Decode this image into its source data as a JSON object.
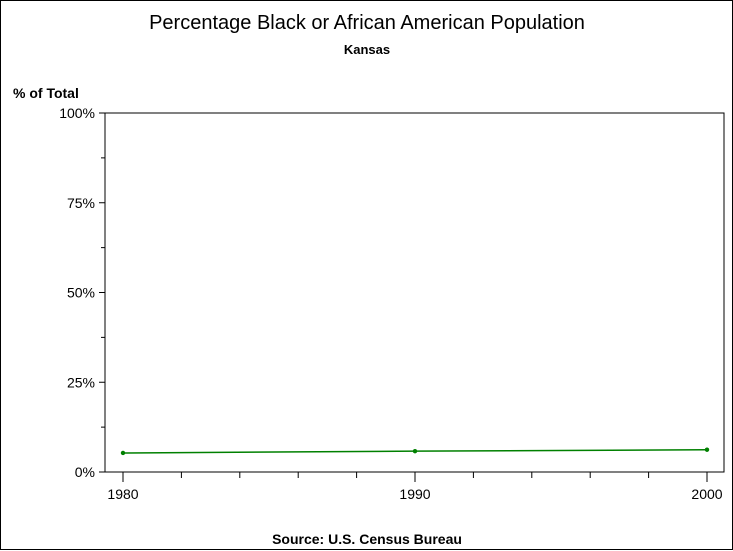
{
  "chart_data": {
    "type": "line",
    "title": "Percentage Black or African American Population",
    "subtitle": "Kansas",
    "ylabel": "% of Total",
    "xlabel": "",
    "footnote": "Source: U.S. Census Bureau",
    "x": [
      1980,
      1990,
      2000
    ],
    "values": [
      5.3,
      5.8,
      6.2
    ],
    "xlim": [
      1980,
      2000
    ],
    "ylim": [
      0,
      100
    ],
    "yticks": [
      "0%",
      "25%",
      "50%",
      "75%",
      "100%"
    ],
    "ytick_values": [
      0,
      25,
      50,
      75,
      100
    ],
    "xticks": [
      "1980",
      "1990",
      "2000"
    ],
    "xtick_values": [
      1980,
      1990,
      2000
    ],
    "color": "#008000",
    "grid": false
  }
}
